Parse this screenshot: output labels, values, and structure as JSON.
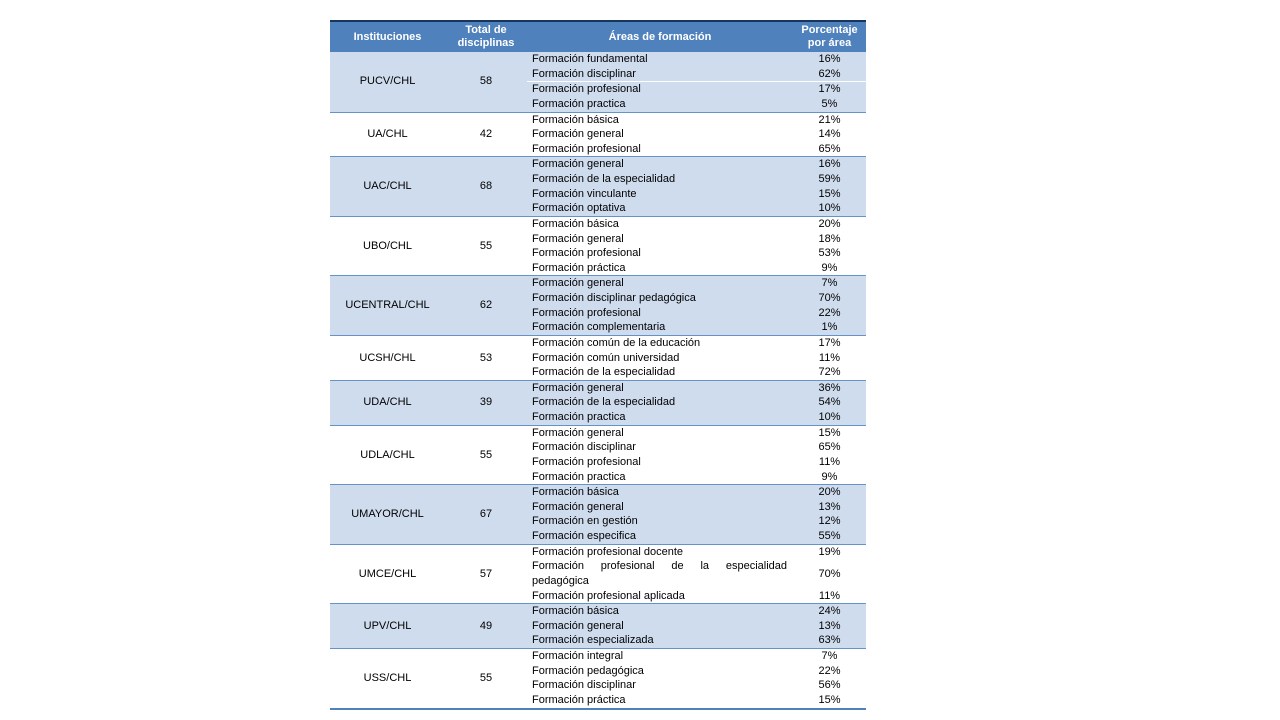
{
  "colors": {
    "header_bg": "#4f81bd",
    "header_text": "#ffffff",
    "shaded_bg": "#cfdcee",
    "separator": "#6593c5",
    "top_border": "#17365d",
    "body_text": "#000000"
  },
  "table": {
    "columns": [
      "Instituciones",
      "Total de disciplinas",
      "Áreas de formación",
      "Porcentaje por área"
    ],
    "groups": [
      {
        "institution": "PUCV/CHL",
        "total": "58",
        "shaded": true,
        "divider_after": 1,
        "areas": [
          {
            "name": "Formación fundamental",
            "pct": "16%"
          },
          {
            "name": "Formación disciplinar",
            "pct": "62%"
          },
          {
            "name": "Formación profesional",
            "pct": "17%"
          },
          {
            "name": "Formación practica",
            "pct": "5%"
          }
        ]
      },
      {
        "institution": "UA/CHL",
        "total": "42",
        "shaded": false,
        "areas": [
          {
            "name": "Formación básica",
            "pct": "21%"
          },
          {
            "name": "Formación general",
            "pct": "14%"
          },
          {
            "name": "Formación profesional",
            "pct": "65%"
          }
        ]
      },
      {
        "institution": "UAC/CHL",
        "total": "68",
        "shaded": true,
        "areas": [
          {
            "name": "Formación general",
            "pct": "16%"
          },
          {
            "name": "Formación de la especialidad",
            "pct": "59%"
          },
          {
            "name": "Formación vinculante",
            "pct": "15%"
          },
          {
            "name": "Formación optativa",
            "pct": "10%"
          }
        ]
      },
      {
        "institution": "UBO/CHL",
        "total": "55",
        "shaded": false,
        "areas": [
          {
            "name": "Formación básica",
            "pct": "20%"
          },
          {
            "name": "Formación general",
            "pct": "18%"
          },
          {
            "name": "Formación profesional",
            "pct": "53%"
          },
          {
            "name": "Formación práctica",
            "pct": "9%"
          }
        ]
      },
      {
        "institution": "UCENTRAL/CHL",
        "total": "62",
        "shaded": true,
        "areas": [
          {
            "name": "Formación general",
            "pct": "7%"
          },
          {
            "name": "Formación disciplinar pedagógica",
            "pct": "70%"
          },
          {
            "name": "Formación profesional",
            "pct": "22%"
          },
          {
            "name": "Formación complementaria",
            "pct": "1%"
          }
        ]
      },
      {
        "institution": "UCSH/CHL",
        "total": "53",
        "shaded": false,
        "areas": [
          {
            "name": "Formación común de la educación",
            "pct": "17%"
          },
          {
            "name": "Formación común universidad",
            "pct": "11%"
          },
          {
            "name": "Formación de la especialidad",
            "pct": "72%"
          }
        ]
      },
      {
        "institution": "UDA/CHL",
        "total": "39",
        "shaded": true,
        "areas": [
          {
            "name": "Formación general",
            "pct": "36%"
          },
          {
            "name": "Formación de la especialidad",
            "pct": "54%"
          },
          {
            "name": "Formación practica",
            "pct": "10%"
          }
        ]
      },
      {
        "institution": "UDLA/CHL",
        "total": "55",
        "shaded": false,
        "areas": [
          {
            "name": "Formación general",
            "pct": "15%"
          },
          {
            "name": "Formación disciplinar",
            "pct": "65%"
          },
          {
            "name": "Formación profesional",
            "pct": "11%"
          },
          {
            "name": "Formación practica",
            "pct": "9%"
          }
        ]
      },
      {
        "institution": "UMAYOR/CHL",
        "total": "67",
        "shaded": true,
        "areas": [
          {
            "name": "Formación básica",
            "pct": "20%"
          },
          {
            "name": "Formación general",
            "pct": "13%"
          },
          {
            "name": "Formación en gestión",
            "pct": "12%"
          },
          {
            "name": "Formación especifica",
            "pct": "55%"
          }
        ]
      },
      {
        "institution": "UMCE/CHL",
        "total": "57",
        "shaded": false,
        "areas": [
          {
            "name": "Formación profesional docente",
            "pct": "19%"
          },
          {
            "name": "Formación profesional de la especialidad pedagógica",
            "pct": "70%",
            "justify": true
          },
          {
            "name": "Formación profesional aplicada",
            "pct": "11%"
          }
        ]
      },
      {
        "institution": "UPV/CHL",
        "total": "49",
        "shaded": true,
        "areas": [
          {
            "name": "Formación básica",
            "pct": "24%"
          },
          {
            "name": "Formación general",
            "pct": "13%"
          },
          {
            "name": "Formación especializada",
            "pct": "63%"
          }
        ]
      },
      {
        "institution": "USS/CHL",
        "total": "55",
        "shaded": false,
        "areas": [
          {
            "name": "Formación integral",
            "pct": "7%"
          },
          {
            "name": "Formación pedagógica",
            "pct": "22%"
          },
          {
            "name": "Formación disciplinar",
            "pct": "56%"
          },
          {
            "name": "Formación práctica",
            "pct": "15%"
          }
        ]
      }
    ]
  }
}
